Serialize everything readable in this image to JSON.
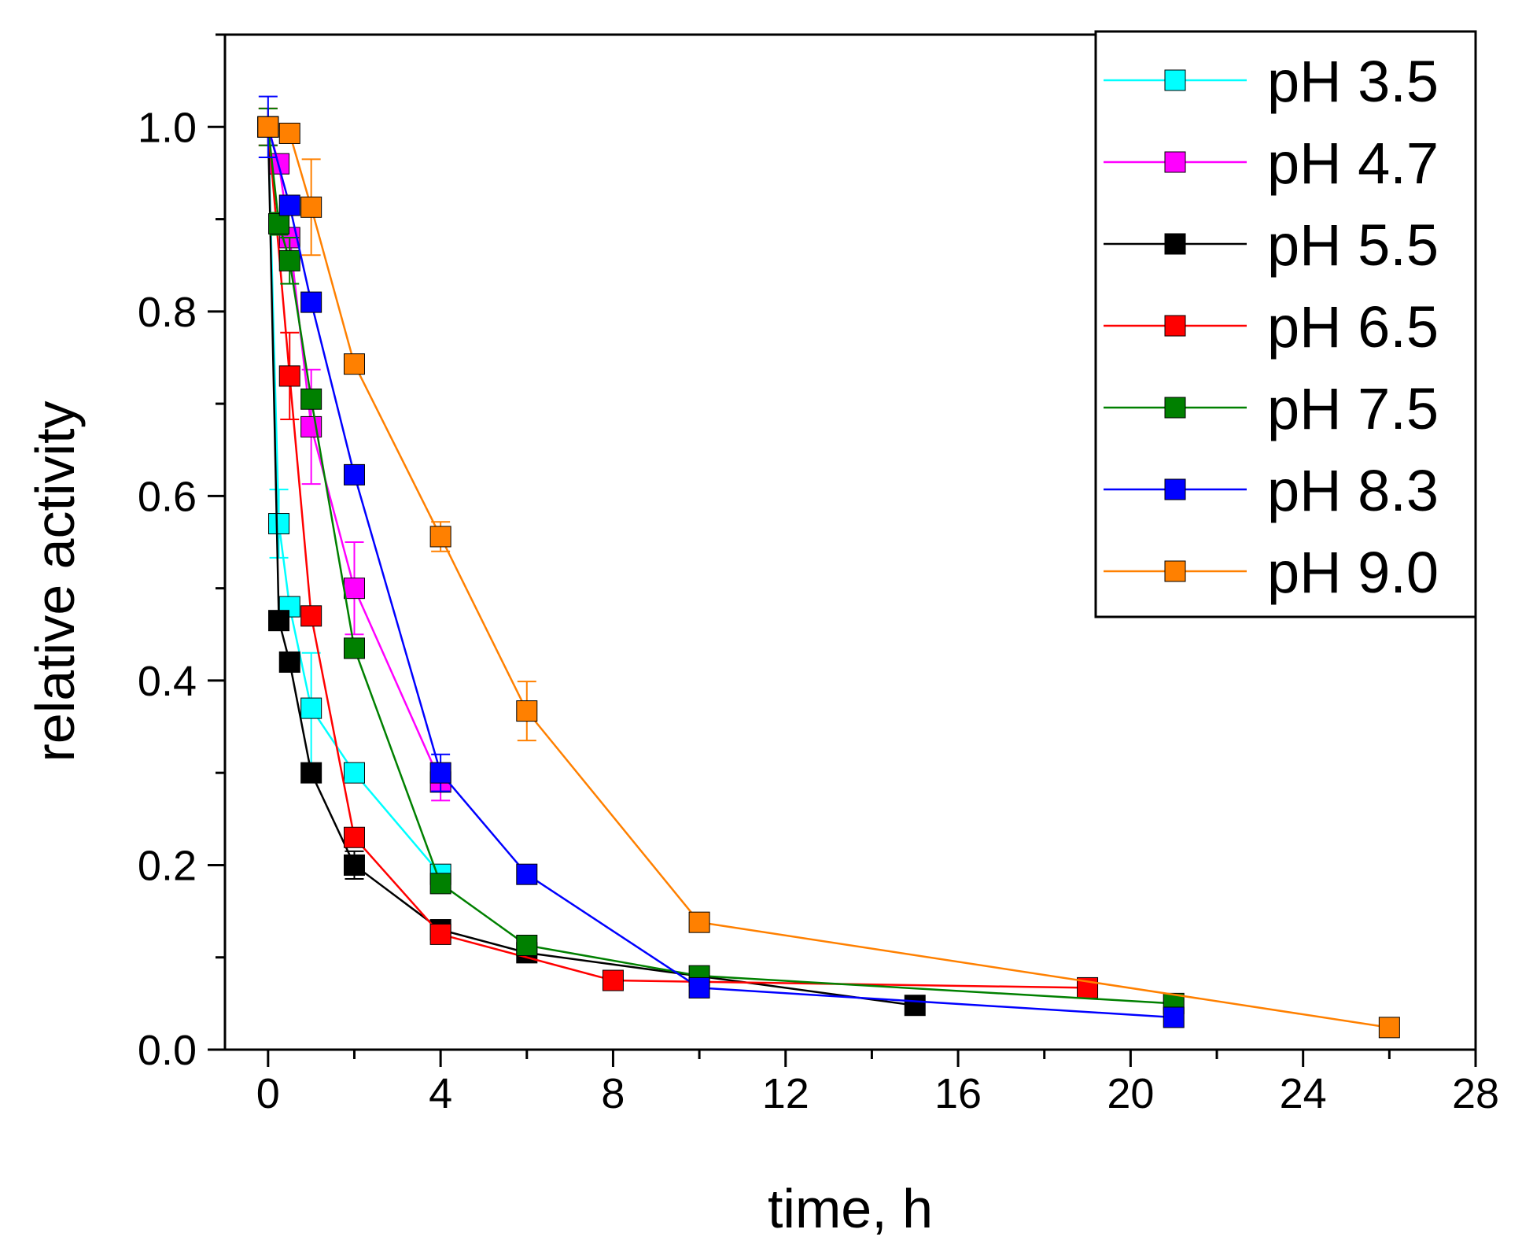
{
  "chart_data": {
    "type": "line",
    "title": "",
    "xlabel": "time, h",
    "ylabel": "relative activity",
    "xlim": [
      -1,
      28
    ],
    "ylim": [
      0,
      1.1
    ],
    "x_ticks": [
      0,
      4,
      8,
      12,
      16,
      20,
      24,
      28
    ],
    "y_ticks": [
      0.0,
      0.2,
      0.4,
      0.6,
      0.8,
      1.0
    ],
    "x_tick_labels": [
      "0",
      "4",
      "8",
      "12",
      "16",
      "20",
      "24",
      "28"
    ],
    "y_tick_labels": [
      "0.0",
      "0.2",
      "0.4",
      "0.6",
      "0.8",
      "1.0"
    ],
    "grid": false,
    "legend_position": "top-right",
    "series": [
      {
        "name": "pH 3.5",
        "color": "#00ffff",
        "points": [
          {
            "x": 0,
            "y": 1.0,
            "err": 0.01
          },
          {
            "x": 0.25,
            "y": 0.57,
            "err": 0.037
          },
          {
            "x": 0.5,
            "y": 0.48,
            "err": 0.01
          },
          {
            "x": 1,
            "y": 0.37,
            "err": 0.06
          },
          {
            "x": 2,
            "y": 0.3,
            "err": 0.01
          },
          {
            "x": 4,
            "y": 0.19,
            "err": 0.01
          }
        ]
      },
      {
        "name": "pH 4.7",
        "color": "#ff00ff",
        "points": [
          {
            "x": 0,
            "y": 1.0,
            "err": 0.02
          },
          {
            "x": 0.25,
            "y": 0.96,
            "err": 0.01
          },
          {
            "x": 0.5,
            "y": 0.88,
            "err": 0.01
          },
          {
            "x": 1,
            "y": 0.675,
            "err": 0.062
          },
          {
            "x": 2,
            "y": 0.5,
            "err": 0.05
          },
          {
            "x": 4,
            "y": 0.29,
            "err": 0.02
          }
        ]
      },
      {
        "name": "pH 5.5",
        "color": "#000000",
        "points": [
          {
            "x": 0,
            "y": 1.0,
            "err": 0.01
          },
          {
            "x": 0.25,
            "y": 0.465,
            "err": 0.01
          },
          {
            "x": 0.5,
            "y": 0.42,
            "err": 0.01
          },
          {
            "x": 1,
            "y": 0.3,
            "err": 0.01
          },
          {
            "x": 2,
            "y": 0.2,
            "err": 0.015
          },
          {
            "x": 4,
            "y": 0.13,
            "err": 0.01
          },
          {
            "x": 6,
            "y": 0.105,
            "err": 0.01
          },
          {
            "x": 15,
            "y": 0.048,
            "err": 0.005
          }
        ]
      },
      {
        "name": "pH 6.5",
        "color": "#ff0000",
        "points": [
          {
            "x": 0,
            "y": 1.0,
            "err": 0.02
          },
          {
            "x": 0.5,
            "y": 0.73,
            "err": 0.047
          },
          {
            "x": 1,
            "y": 0.47,
            "err": 0.01
          },
          {
            "x": 2,
            "y": 0.23,
            "err": 0.01
          },
          {
            "x": 4,
            "y": 0.125,
            "err": 0.01
          },
          {
            "x": 8,
            "y": 0.075,
            "err": 0.005
          },
          {
            "x": 19,
            "y": 0.067,
            "err": 0.005
          }
        ]
      },
      {
        "name": "pH 7.5",
        "color": "#008000",
        "points": [
          {
            "x": 0,
            "y": 1.0,
            "err": 0.02
          },
          {
            "x": 0.25,
            "y": 0.895,
            "err": 0.012
          },
          {
            "x": 0.5,
            "y": 0.855,
            "err": 0.025
          },
          {
            "x": 1,
            "y": 0.705,
            "err": 0.01
          },
          {
            "x": 2,
            "y": 0.435,
            "err": 0.01
          },
          {
            "x": 4,
            "y": 0.18,
            "err": 0.01
          },
          {
            "x": 6,
            "y": 0.113,
            "err": 0.01
          },
          {
            "x": 10,
            "y": 0.08,
            "err": 0.005
          },
          {
            "x": 21,
            "y": 0.05,
            "err": 0.005
          }
        ]
      },
      {
        "name": "pH 8.3",
        "color": "#0000ff",
        "points": [
          {
            "x": 0,
            "y": 1.0,
            "err": 0.033
          },
          {
            "x": 0.5,
            "y": 0.915,
            "err": 0.01
          },
          {
            "x": 1,
            "y": 0.81,
            "err": 0.01
          },
          {
            "x": 2,
            "y": 0.623,
            "err": 0.01
          },
          {
            "x": 4,
            "y": 0.3,
            "err": 0.02
          },
          {
            "x": 6,
            "y": 0.19,
            "err": 0.01
          },
          {
            "x": 10,
            "y": 0.067,
            "err": 0.005
          },
          {
            "x": 21,
            "y": 0.035,
            "err": 0.005
          }
        ]
      },
      {
        "name": "pH 9.0",
        "color": "#ff8000",
        "points": [
          {
            "x": 0,
            "y": 1.0,
            "err": 0.01
          },
          {
            "x": 0.5,
            "y": 0.993,
            "err": 0.01
          },
          {
            "x": 1,
            "y": 0.913,
            "err": 0.052
          },
          {
            "x": 2,
            "y": 0.743,
            "err": 0.01
          },
          {
            "x": 4,
            "y": 0.556,
            "err": 0.016
          },
          {
            "x": 6,
            "y": 0.367,
            "err": 0.032
          },
          {
            "x": 10,
            "y": 0.138,
            "err": 0.01
          },
          {
            "x": 26,
            "y": 0.024,
            "err": 0.005
          }
        ]
      }
    ]
  }
}
